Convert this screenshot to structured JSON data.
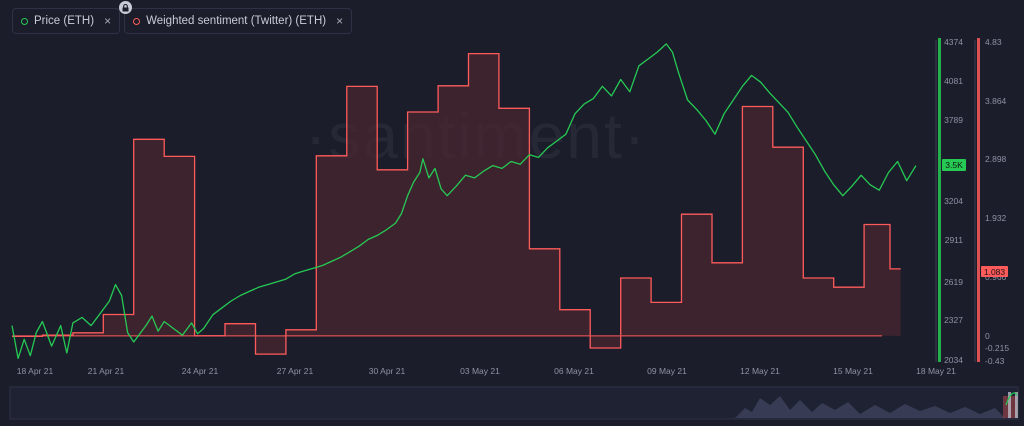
{
  "legend": [
    {
      "label": "Price (ETH)",
      "color": "#26c953",
      "close": "×"
    },
    {
      "label": "Weighted sentiment (Twitter) (ETH)",
      "color": "#ff5b5b",
      "close": "×"
    }
  ],
  "watermark": "·santiment·",
  "badges": {
    "price_value": "3.5K",
    "sentiment_value": "1.083"
  },
  "colors": {
    "background": "#1b1d2b",
    "price": "#26c953",
    "sentiment": "#ff5b5b",
    "sentiment_fill": "#4a2630"
  },
  "chart_data": {
    "type": "line",
    "x_tick_labels": [
      "18 Apr 21",
      "21 Apr 21",
      "24 Apr 21",
      "27 Apr 21",
      "30 Apr 21",
      "03 May 21",
      "06 May 21",
      "09 May 21",
      "12 May 21",
      "15 May 21",
      "18 May 21"
    ],
    "y_price_ticks": [
      "4374",
      "4081",
      "3789",
      "3497",
      "3204",
      "2911",
      "2619",
      "2327",
      "2034"
    ],
    "y_sentiment_ticks": [
      "4.83",
      "3.864",
      "2.898",
      "1.932",
      "0.966",
      "0",
      "-0.215",
      "-0.43"
    ],
    "price_range": [
      2034,
      4374
    ],
    "sentiment_range": [
      -0.43,
      4.83
    ],
    "series": [
      {
        "name": "Price (ETH)",
        "axis": "left",
        "points": [
          [
            0,
            2300
          ],
          [
            0.2,
            2060
          ],
          [
            0.4,
            2200
          ],
          [
            0.6,
            2080
          ],
          [
            0.8,
            2250
          ],
          [
            1.0,
            2330
          ],
          [
            1.3,
            2150
          ],
          [
            1.6,
            2300
          ],
          [
            1.8,
            2100
          ],
          [
            2.0,
            2320
          ],
          [
            2.3,
            2360
          ],
          [
            2.6,
            2300
          ],
          [
            2.9,
            2390
          ],
          [
            3.2,
            2480
          ],
          [
            3.4,
            2600
          ],
          [
            3.6,
            2520
          ],
          [
            3.8,
            2250
          ],
          [
            4.0,
            2180
          ],
          [
            4.2,
            2240
          ],
          [
            4.4,
            2300
          ],
          [
            4.6,
            2370
          ],
          [
            4.8,
            2260
          ],
          [
            5.0,
            2330
          ],
          [
            5.3,
            2280
          ],
          [
            5.6,
            2230
          ],
          [
            5.9,
            2320
          ],
          [
            6.1,
            2240
          ],
          [
            6.3,
            2280
          ],
          [
            6.6,
            2380
          ],
          [
            6.9,
            2430
          ],
          [
            7.2,
            2480
          ],
          [
            7.5,
            2520
          ],
          [
            7.8,
            2550
          ],
          [
            8.1,
            2580
          ],
          [
            8.4,
            2600
          ],
          [
            8.7,
            2620
          ],
          [
            9.0,
            2640
          ],
          [
            9.3,
            2680
          ],
          [
            9.6,
            2700
          ],
          [
            9.9,
            2720
          ],
          [
            10.2,
            2740
          ],
          [
            10.5,
            2770
          ],
          [
            10.8,
            2800
          ],
          [
            11.1,
            2840
          ],
          [
            11.4,
            2880
          ],
          [
            11.7,
            2930
          ],
          [
            12.0,
            2960
          ],
          [
            12.3,
            3000
          ],
          [
            12.6,
            3050
          ],
          [
            12.8,
            3120
          ],
          [
            13.0,
            3250
          ],
          [
            13.2,
            3350
          ],
          [
            13.4,
            3420
          ],
          [
            13.5,
            3520
          ],
          [
            13.7,
            3380
          ],
          [
            13.9,
            3450
          ],
          [
            14.1,
            3300
          ],
          [
            14.3,
            3250
          ],
          [
            14.6,
            3320
          ],
          [
            14.9,
            3400
          ],
          [
            15.2,
            3380
          ],
          [
            15.5,
            3430
          ],
          [
            15.8,
            3470
          ],
          [
            16.1,
            3450
          ],
          [
            16.4,
            3500
          ],
          [
            16.7,
            3480
          ],
          [
            17.0,
            3550
          ],
          [
            17.3,
            3530
          ],
          [
            17.6,
            3600
          ],
          [
            17.9,
            3650
          ],
          [
            18.2,
            3700
          ],
          [
            18.5,
            3850
          ],
          [
            18.8,
            3920
          ],
          [
            19.1,
            3960
          ],
          [
            19.4,
            4050
          ],
          [
            19.7,
            3980
          ],
          [
            20.0,
            4100
          ],
          [
            20.3,
            4010
          ],
          [
            20.6,
            4200
          ],
          [
            20.9,
            4250
          ],
          [
            21.2,
            4300
          ],
          [
            21.5,
            4360
          ],
          [
            21.7,
            4300
          ],
          [
            21.9,
            4150
          ],
          [
            22.2,
            3950
          ],
          [
            22.5,
            3880
          ],
          [
            22.8,
            3800
          ],
          [
            23.1,
            3700
          ],
          [
            23.4,
            3850
          ],
          [
            23.7,
            3950
          ],
          [
            24.0,
            4050
          ],
          [
            24.3,
            4130
          ],
          [
            24.6,
            4080
          ],
          [
            24.9,
            4000
          ],
          [
            25.2,
            3930
          ],
          [
            25.5,
            3860
          ],
          [
            25.8,
            3750
          ],
          [
            26.1,
            3650
          ],
          [
            26.4,
            3550
          ],
          [
            26.7,
            3430
          ],
          [
            27.0,
            3330
          ],
          [
            27.3,
            3250
          ],
          [
            27.6,
            3320
          ],
          [
            27.9,
            3400
          ],
          [
            28.2,
            3330
          ],
          [
            28.5,
            3290
          ],
          [
            28.8,
            3420
          ],
          [
            29.1,
            3500
          ],
          [
            29.4,
            3360
          ],
          [
            29.7,
            3470
          ]
        ]
      },
      {
        "name": "Weighted sentiment (Twitter) (ETH)",
        "axis": "right",
        "step_points": [
          [
            0.5,
            -0.01
          ],
          [
            1.5,
            0.01
          ],
          [
            2.5,
            0.05
          ],
          [
            3.5,
            0.35
          ],
          [
            4.5,
            3.23
          ],
          [
            5.5,
            2.95
          ],
          [
            6.5,
            0
          ],
          [
            7.5,
            0.2
          ],
          [
            8.5,
            -0.3
          ],
          [
            9.5,
            0.1
          ],
          [
            10.5,
            2.96
          ],
          [
            11.5,
            4.1
          ],
          [
            12.5,
            2.73
          ],
          [
            13.5,
            3.68
          ],
          [
            14.5,
            4.11
          ],
          [
            15.5,
            4.64
          ],
          [
            16.5,
            3.74
          ],
          [
            17.5,
            1.43
          ],
          [
            18.5,
            0.43
          ],
          [
            19.5,
            -0.2
          ],
          [
            20.5,
            0.95
          ],
          [
            21.5,
            0.55
          ],
          [
            22.5,
            2.0
          ],
          [
            23.5,
            1.2
          ],
          [
            24.5,
            3.77
          ],
          [
            25.5,
            3.1
          ],
          [
            26.5,
            0.95
          ],
          [
            27.5,
            0.8
          ],
          [
            28.5,
            1.83
          ],
          [
            29.2,
            1.1
          ]
        ]
      }
    ],
    "grid": false,
    "legend_position": "top-left"
  }
}
